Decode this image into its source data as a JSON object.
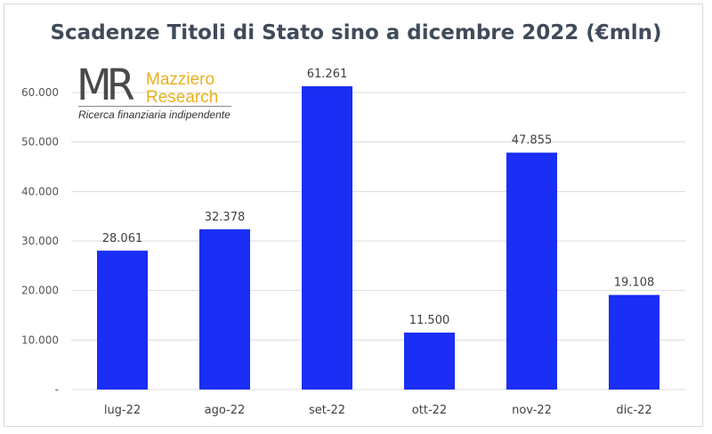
{
  "chart_data": {
    "type": "bar",
    "title": "Scadenze Titoli di Stato sino a dicembre 2022 (€mln)",
    "categories": [
      "lug-22",
      "ago-22",
      "set-22",
      "ott-22",
      "nov-22",
      "dic-22"
    ],
    "values": [
      28061,
      32378,
      61261,
      11500,
      47855,
      19108
    ],
    "value_labels": [
      "28.061",
      "32.378",
      "61.261",
      "11.500",
      "47.855",
      "19.108"
    ],
    "ylim": [
      0,
      60000
    ],
    "yticks": [
      0,
      10000,
      20000,
      30000,
      40000,
      50000,
      60000
    ],
    "ytick_labels": [
      "-",
      "10.000",
      "20.000",
      "30.000",
      "40.000",
      "50.000",
      "60.000"
    ],
    "grid": true,
    "bar_color": "#1a2ef5"
  },
  "logo": {
    "mark": "MR",
    "name_line1": "Mazziero",
    "name_line2": "Research",
    "tagline": "Ricerca finanziaria indipendente"
  }
}
